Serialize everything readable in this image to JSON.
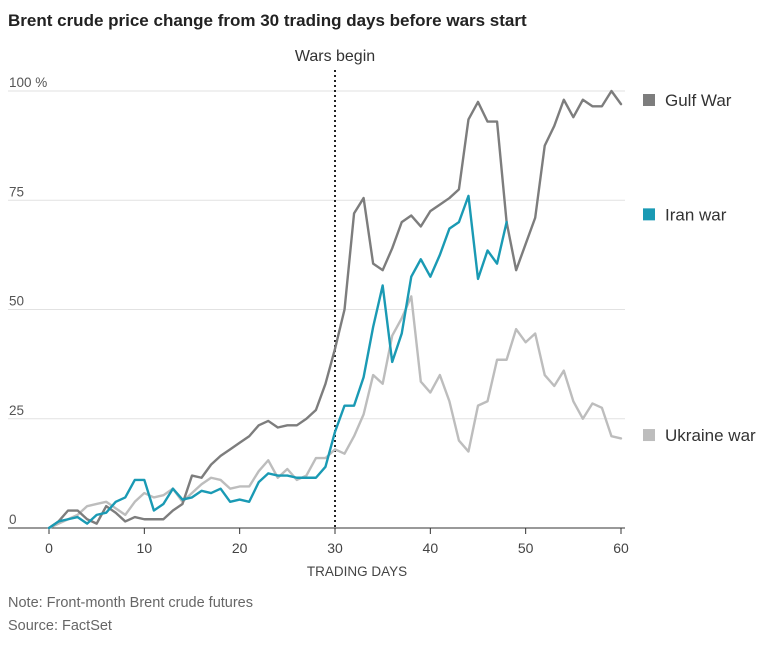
{
  "chart_data": {
    "type": "line",
    "title": "Brent crude price change from 30 trading days before wars start",
    "xlabel": "TRADING DAYS",
    "ylabel": "",
    "xlim": [
      0,
      60
    ],
    "ylim": [
      0,
      100
    ],
    "x_ticks": [
      "0",
      "10",
      "20",
      "30",
      "40",
      "50",
      "60"
    ],
    "y_ticks": [
      "0",
      "25",
      "50",
      "75",
      "100 %"
    ],
    "grid": "horizontal",
    "annotation": {
      "label": "Wars begin",
      "x": 30
    },
    "series": [
      {
        "name": "Gulf War",
        "color": "#7d7d7d",
        "x": [
          0,
          1,
          2,
          3,
          4,
          5,
          6,
          7,
          8,
          9,
          10,
          11,
          12,
          13,
          14,
          15,
          16,
          17,
          18,
          19,
          20,
          21,
          22,
          23,
          24,
          25,
          26,
          27,
          28,
          29,
          30,
          31,
          32,
          33,
          34,
          35,
          36,
          37,
          38,
          39,
          40,
          41,
          42,
          43,
          44,
          45,
          46,
          47,
          48,
          49,
          50,
          51,
          52,
          53,
          54,
          55,
          56,
          57,
          58,
          59,
          60
        ],
        "values": [
          0,
          1.5,
          4,
          4,
          2,
          1,
          5,
          3.5,
          1.5,
          2.5,
          2,
          2,
          2,
          4,
          5.5,
          12,
          11.5,
          14.5,
          16.5,
          18,
          19.5,
          21,
          23.5,
          24.5,
          23,
          23.5,
          23.5,
          25,
          27,
          33,
          41,
          50,
          72,
          75.5,
          60.5,
          59,
          64,
          70,
          71.5,
          69,
          72.5,
          74,
          75.5,
          77.5,
          93.5,
          97.5,
          93,
          93,
          70,
          59,
          65,
          71,
          87.5,
          92,
          98,
          94,
          98,
          96.5,
          96.5,
          100,
          97
        ]
      },
      {
        "name": "Iran war",
        "color": "#1a9ab4",
        "x": [
          0,
          1,
          2,
          3,
          4,
          5,
          6,
          7,
          8,
          9,
          10,
          11,
          12,
          13,
          14,
          15,
          16,
          17,
          18,
          19,
          20,
          21,
          22,
          23,
          24,
          25,
          26,
          27,
          28,
          29,
          30,
          31,
          32,
          33,
          34,
          35,
          36,
          37,
          38,
          39,
          40,
          41,
          42,
          43,
          44,
          45,
          46,
          47,
          48
        ],
        "values": [
          0,
          1.5,
          2,
          2.5,
          1,
          3,
          3.5,
          6,
          7,
          11,
          11,
          4,
          5.5,
          9,
          6.5,
          7,
          8.5,
          8,
          9,
          6,
          6.5,
          6,
          10.5,
          12.5,
          12,
          12,
          11.5,
          11.5,
          11.5,
          14,
          22,
          28,
          28,
          34.5,
          46,
          55.5,
          38,
          44.5,
          57.5,
          61.5,
          57.5,
          62.5,
          68.5,
          70,
          76,
          57,
          63.5,
          60.5,
          70
        ]
      },
      {
        "name": "Ukraine war",
        "color": "#bdbdbd",
        "x": [
          0,
          1,
          2,
          3,
          4,
          5,
          6,
          7,
          8,
          9,
          10,
          11,
          12,
          13,
          14,
          15,
          16,
          17,
          18,
          19,
          20,
          21,
          22,
          23,
          24,
          25,
          26,
          27,
          28,
          29,
          30,
          31,
          32,
          33,
          34,
          35,
          36,
          37,
          38,
          39,
          40,
          41,
          42,
          43,
          44,
          45,
          46,
          47,
          48,
          49,
          50,
          51,
          52,
          53,
          54,
          55,
          56,
          57,
          58,
          59,
          60
        ],
        "values": [
          0,
          1,
          2,
          3,
          5,
          5.5,
          6,
          4.5,
          3,
          6,
          8,
          7,
          7.5,
          9,
          6,
          8,
          10,
          11.5,
          11,
          9,
          9.5,
          9.5,
          13,
          15.5,
          11.5,
          13.5,
          11,
          12,
          16,
          16,
          18,
          17,
          21,
          26,
          35,
          33,
          44,
          48,
          53,
          33.5,
          31,
          35,
          29,
          20,
          17.5,
          28,
          29,
          38.5,
          38.5,
          45.5,
          42.5,
          44.5,
          35,
          32.5,
          36,
          29,
          25,
          28.5,
          27.5,
          21,
          20.5
        ]
      }
    ]
  },
  "footer": {
    "note": "Note: Front-month Brent crude futures",
    "source": "Source: FactSet"
  }
}
